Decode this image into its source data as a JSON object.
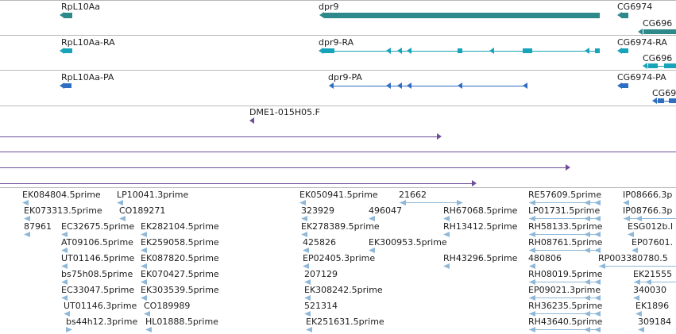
{
  "gene_track": {
    "labels": [
      "RpL10Aa",
      "dpr9",
      "CG6974",
      "CG696"
    ]
  },
  "rna_track": {
    "labels": [
      "RpL10Aa-RA",
      "dpr9-RA",
      "CG6974-RA",
      "CG696"
    ]
  },
  "protein_track": {
    "labels": [
      "RpL10Aa-PA",
      "dpr9-PA",
      "CG6974-PA",
      "CG69"
    ]
  },
  "clone_track": {
    "labels": [
      "DME1-015H05.F"
    ]
  },
  "est_track": {
    "labels": [
      "EK084804.5prime",
      "LP10041.3prime",
      "EK050941.5prime",
      "21662",
      "RE57609.5prime",
      "IP08666.3p",
      "EK073313.5prime",
      "CO189271",
      "323929",
      "496047",
      "RH67068.5prime",
      "LP01731.5prime",
      "IP08766.3p",
      "87961",
      "EC32675.5prime",
      "EK282104.5prime",
      "EK278389.5prime",
      "RH13412.5prime",
      "RH58133.5prime",
      "ESG012b.I",
      "AT09106.5prime",
      "EK259058.5prime",
      "425826",
      "EK300953.5prime",
      "RH08761.5prime",
      "EP07601.",
      "UT01146.5prime",
      "EK087820.5prime",
      "EP02405.3prime",
      "RH43296.5prime",
      "480806",
      "RP003380780.5",
      "bs75h08.5prime",
      "EK070427.5prime",
      "207129",
      "RH08019.5prime",
      "EK21555",
      "EC33047.5prime",
      "EK303539.5prime",
      "EK308242.5prime",
      "EP09021.3prime",
      "340030",
      "UT01146.3prime",
      "CO189989",
      "521314",
      "RH36235.5prime",
      "EK1896",
      "bs44h12.3prime",
      "HL01888.5prime",
      "EK251631.5prime",
      "RH43640.5prime",
      "309184"
    ]
  },
  "colors": {
    "gene": "#2e8a8a",
    "rna": "#17a3b8",
    "protein": "#2f6fc2",
    "clone": "#6e4e9a",
    "est": "#8fb8d8",
    "separator": "#b8b8b8"
  }
}
